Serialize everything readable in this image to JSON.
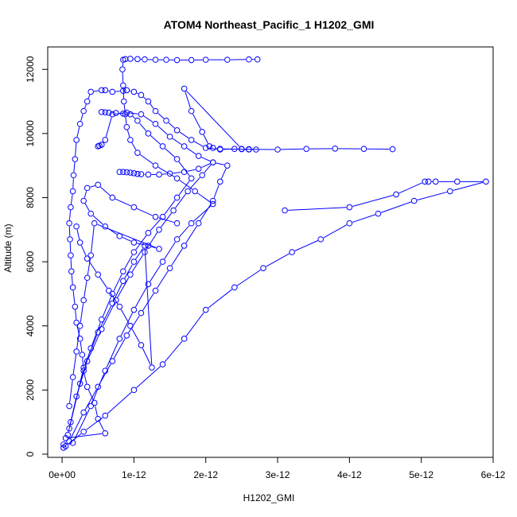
{
  "chart_data": {
    "type": "line",
    "title": "ATOM4 Northeast_Pacific_1 H1202_GMI",
    "xlabel": "H1202_GMI",
    "ylabel": "Altitude (m)",
    "xlim": [
      -2e-13,
      6e-12
    ],
    "ylim": [
      -100,
      12700
    ],
    "xticks": [
      0,
      1e-12,
      2e-12,
      3e-12,
      4e-12,
      5e-12,
      6e-12
    ],
    "xtick_labels": [
      "0e+00",
      "1e-12",
      "2e-12",
      "3e-12",
      "4e-12",
      "5e-12",
      "6e-12"
    ],
    "yticks": [
      0,
      2000,
      4000,
      6000,
      8000,
      10000,
      12000
    ],
    "ytick_labels": [
      "0",
      "2000",
      "4000",
      "6000",
      "8000",
      "10000",
      "12000"
    ],
    "grid": false,
    "legend": "none",
    "series": [
      {
        "color": "#0000ff",
        "marker": "open-circle",
        "x": [
          2e-14,
          2e-14,
          5e-14,
          6e-13,
          5e-13,
          4.5e-13,
          3.5e-13,
          3e-13,
          2.8e-13,
          2.5e-13,
          2e-13,
          1.8e-13,
          1.5e-13,
          1.3e-13,
          1.2e-13,
          1.1e-13,
          1e-13,
          1.2e-13,
          1.5e-13,
          1.6e-13,
          1.8e-13,
          2e-13,
          2.5e-13,
          3e-13,
          3.5e-13,
          4e-13,
          5.5e-13,
          6e-13,
          7e-13,
          8.5e-13,
          9e-13,
          1e-12,
          1.1e-12,
          1.2e-12,
          1.3e-12,
          1.45e-12,
          1.6e-12,
          1.8e-12,
          2e-12,
          2.2e-12,
          2.4e-12,
          2.6e-12,
          2.7e-12,
          2.6e-12,
          2.5e-12,
          1.7e-12,
          1.8e-12,
          1.95e-12,
          2.05e-12,
          2.1e-12,
          2.2e-12,
          2.5e-12,
          3e-12,
          3.4e-12,
          3.8e-12,
          4.2e-12,
          4.6e-12
        ],
        "y": [
          200,
          300,
          500,
          650,
          1100,
          1600,
          2100,
          2600,
          3100,
          3600,
          4100,
          4600,
          5200,
          5700,
          6200,
          6700,
          7200,
          7700,
          8200,
          8700,
          9200,
          9800,
          10300,
          10700,
          11000,
          11300,
          11350,
          11350,
          11300,
          11330,
          11350,
          11300,
          11200,
          11000,
          10700,
          10400,
          10100,
          9800,
          9550,
          9500,
          9520,
          9500,
          9500,
          9510,
          9520,
          11400,
          10700,
          10050,
          9600,
          9550,
          9520,
          9510,
          9500,
          9520,
          9530,
          9520,
          9510
        ]
      },
      {
        "color": "#0000ff",
        "marker": "open-circle",
        "x": [
          5e-14,
          3e-13,
          6e-13,
          1e-12,
          1.4e-12,
          1.7e-12,
          2e-12,
          2.4e-12,
          2.8e-12,
          3.2e-12,
          3.6e-12,
          4e-12,
          4.4e-12,
          4.9e-12,
          5.4e-12,
          5.9e-12,
          5.5e-12,
          5.2e-12,
          5.1e-12,
          5.05e-12,
          4.65e-12,
          4e-12,
          3.1e-12
        ],
        "y": [
          250,
          700,
          1200,
          2000,
          2800,
          3600,
          4500,
          5200,
          5800,
          6300,
          6700,
          7200,
          7500,
          7900,
          8200,
          8500,
          8500,
          8500,
          8500,
          8500,
          8100,
          7700,
          7600
        ]
      },
      {
        "color": "#0000ff",
        "marker": "open-circle",
        "x": [
          1e-13,
          3e-13,
          5e-13,
          7e-13,
          9e-13,
          1.1e-12,
          1.3e-12,
          1.5e-12,
          1.7e-12,
          1.9e-12,
          2.1e-12,
          2.2e-12,
          2.3e-12,
          2.1e-12,
          1.9e-12,
          1.7e-12,
          1.5e-12,
          1.35e-12,
          1.2e-12,
          1.1e-12,
          1.05e-12,
          1e-12,
          9.5e-13,
          9e-13,
          8.5e-13,
          8e-13
        ],
        "y": [
          400,
          1300,
          2100,
          2900,
          3700,
          4400,
          5100,
          5800,
          6500,
          7200,
          7900,
          8500,
          9000,
          9100,
          8900,
          8800,
          8750,
          8720,
          8720,
          8730,
          8740,
          8760,
          8780,
          8790,
          8800,
          8800
        ]
      },
      {
        "color": "#0000ff",
        "marker": "open-circle",
        "x": [
          1.5e-13,
          4e-13,
          6e-13,
          8e-13,
          1e-12,
          1.2e-12,
          1.4e-12,
          1.6e-12,
          1.8e-12,
          2.1e-12,
          1.85e-12,
          1.6e-12,
          1.3e-12,
          1.05e-12,
          9.5e-13,
          9e-13,
          8.8e-13,
          8.6e-13,
          8.5e-13,
          8.4e-13,
          8.5e-13,
          8.8e-13,
          9.5e-13,
          1.05e-12,
          1.15e-12,
          1.3e-12,
          1.45e-12,
          1.6e-12,
          1.8e-12,
          2e-12,
          2.3e-12,
          2.6e-12,
          2.72e-12
        ],
        "y": [
          350,
          1500,
          2600,
          3600,
          4500,
          5300,
          6000,
          6700,
          7200,
          7800,
          8200,
          8600,
          9000,
          9400,
          9800,
          10200,
          10600,
          11000,
          11500,
          12000,
          12300,
          12320,
          12330,
          12320,
          12310,
          12300,
          12300,
          12290,
          12290,
          12300,
          12300,
          12310,
          12310
        ]
      },
      {
        "color": "#0000ff",
        "marker": "open-circle",
        "x": [
          8e-14,
          2e-13,
          3.5e-13,
          5.5e-13,
          7.5e-13,
          9.5e-13,
          1.15e-12,
          1.35e-12,
          1.55e-12,
          1.75e-12,
          1.95e-12,
          2.1e-12,
          1.9e-12,
          1.7e-12,
          1.5e-12,
          1.3e-12,
          1.1e-12,
          9e-13,
          7e-13,
          6e-13,
          5.5e-13,
          5.2e-13,
          5e-13
        ],
        "y": [
          600,
          1800,
          2900,
          3900,
          4800,
          5600,
          6300,
          7000,
          7600,
          8200,
          8700,
          9100,
          9300,
          9600,
          9900,
          10300,
          10600,
          10650,
          10600,
          9800,
          9650,
          9620,
          9600
        ]
      },
      {
        "color": "#0000ff",
        "marker": "open-circle",
        "x": [
          1e-13,
          2.5e-13,
          4e-13,
          5.5e-13,
          7e-13,
          8.5e-13,
          1e-12,
          1.2e-12,
          1.4e-12,
          1.6e-12,
          1.8e-12,
          1.6e-12,
          1.4e-12,
          1.2e-12,
          1.05e-12,
          9.5e-13,
          8.5e-13,
          7.5e-13,
          6.5e-13,
          6e-13,
          5.5e-13
        ],
        "y": [
          800,
          2200,
          3300,
          4200,
          5000,
          5700,
          6300,
          6900,
          7400,
          8000,
          8600,
          9200,
          9600,
          10000,
          10400,
          10600,
          10620,
          10640,
          10650,
          10660,
          10670
        ]
      },
      {
        "color": "#0000ff",
        "marker": "open-circle",
        "x": [
          1.2e-13,
          3e-13,
          5e-13,
          7e-13,
          8.5e-13,
          1e-12,
          1.15e-12,
          1.25e-12,
          1.1e-12,
          9.5e-13,
          8e-13,
          6.5e-13,
          5e-13,
          3.5e-13,
          2.5e-13,
          2e-13
        ],
        "y": [
          1000,
          2700,
          3800,
          4700,
          5400,
          6000,
          6500,
          2700,
          3400,
          4000,
          4600,
          5100,
          5600,
          6100,
          6600,
          7100
        ]
      },
      {
        "color": "#0000ff",
        "marker": "open-circle",
        "x": [
          1e-13,
          1.5e-13,
          2e-13,
          2.5e-13,
          3e-13,
          3.5e-13,
          4e-13,
          4.5e-13,
          1.35e-12,
          1.2e-12,
          1e-12,
          8e-13,
          6e-13,
          4e-13,
          3e-13,
          3.5e-13,
          5e-13,
          7e-13,
          1e-12,
          1.3e-12,
          1.6e-12
        ],
        "y": [
          1500,
          2400,
          3200,
          4000,
          4800,
          5500,
          6200,
          7200,
          6400,
          6500,
          6600,
          6800,
          7100,
          7500,
          7900,
          8300,
          8400,
          8000,
          7700,
          7400,
          7200
        ]
      }
    ]
  }
}
